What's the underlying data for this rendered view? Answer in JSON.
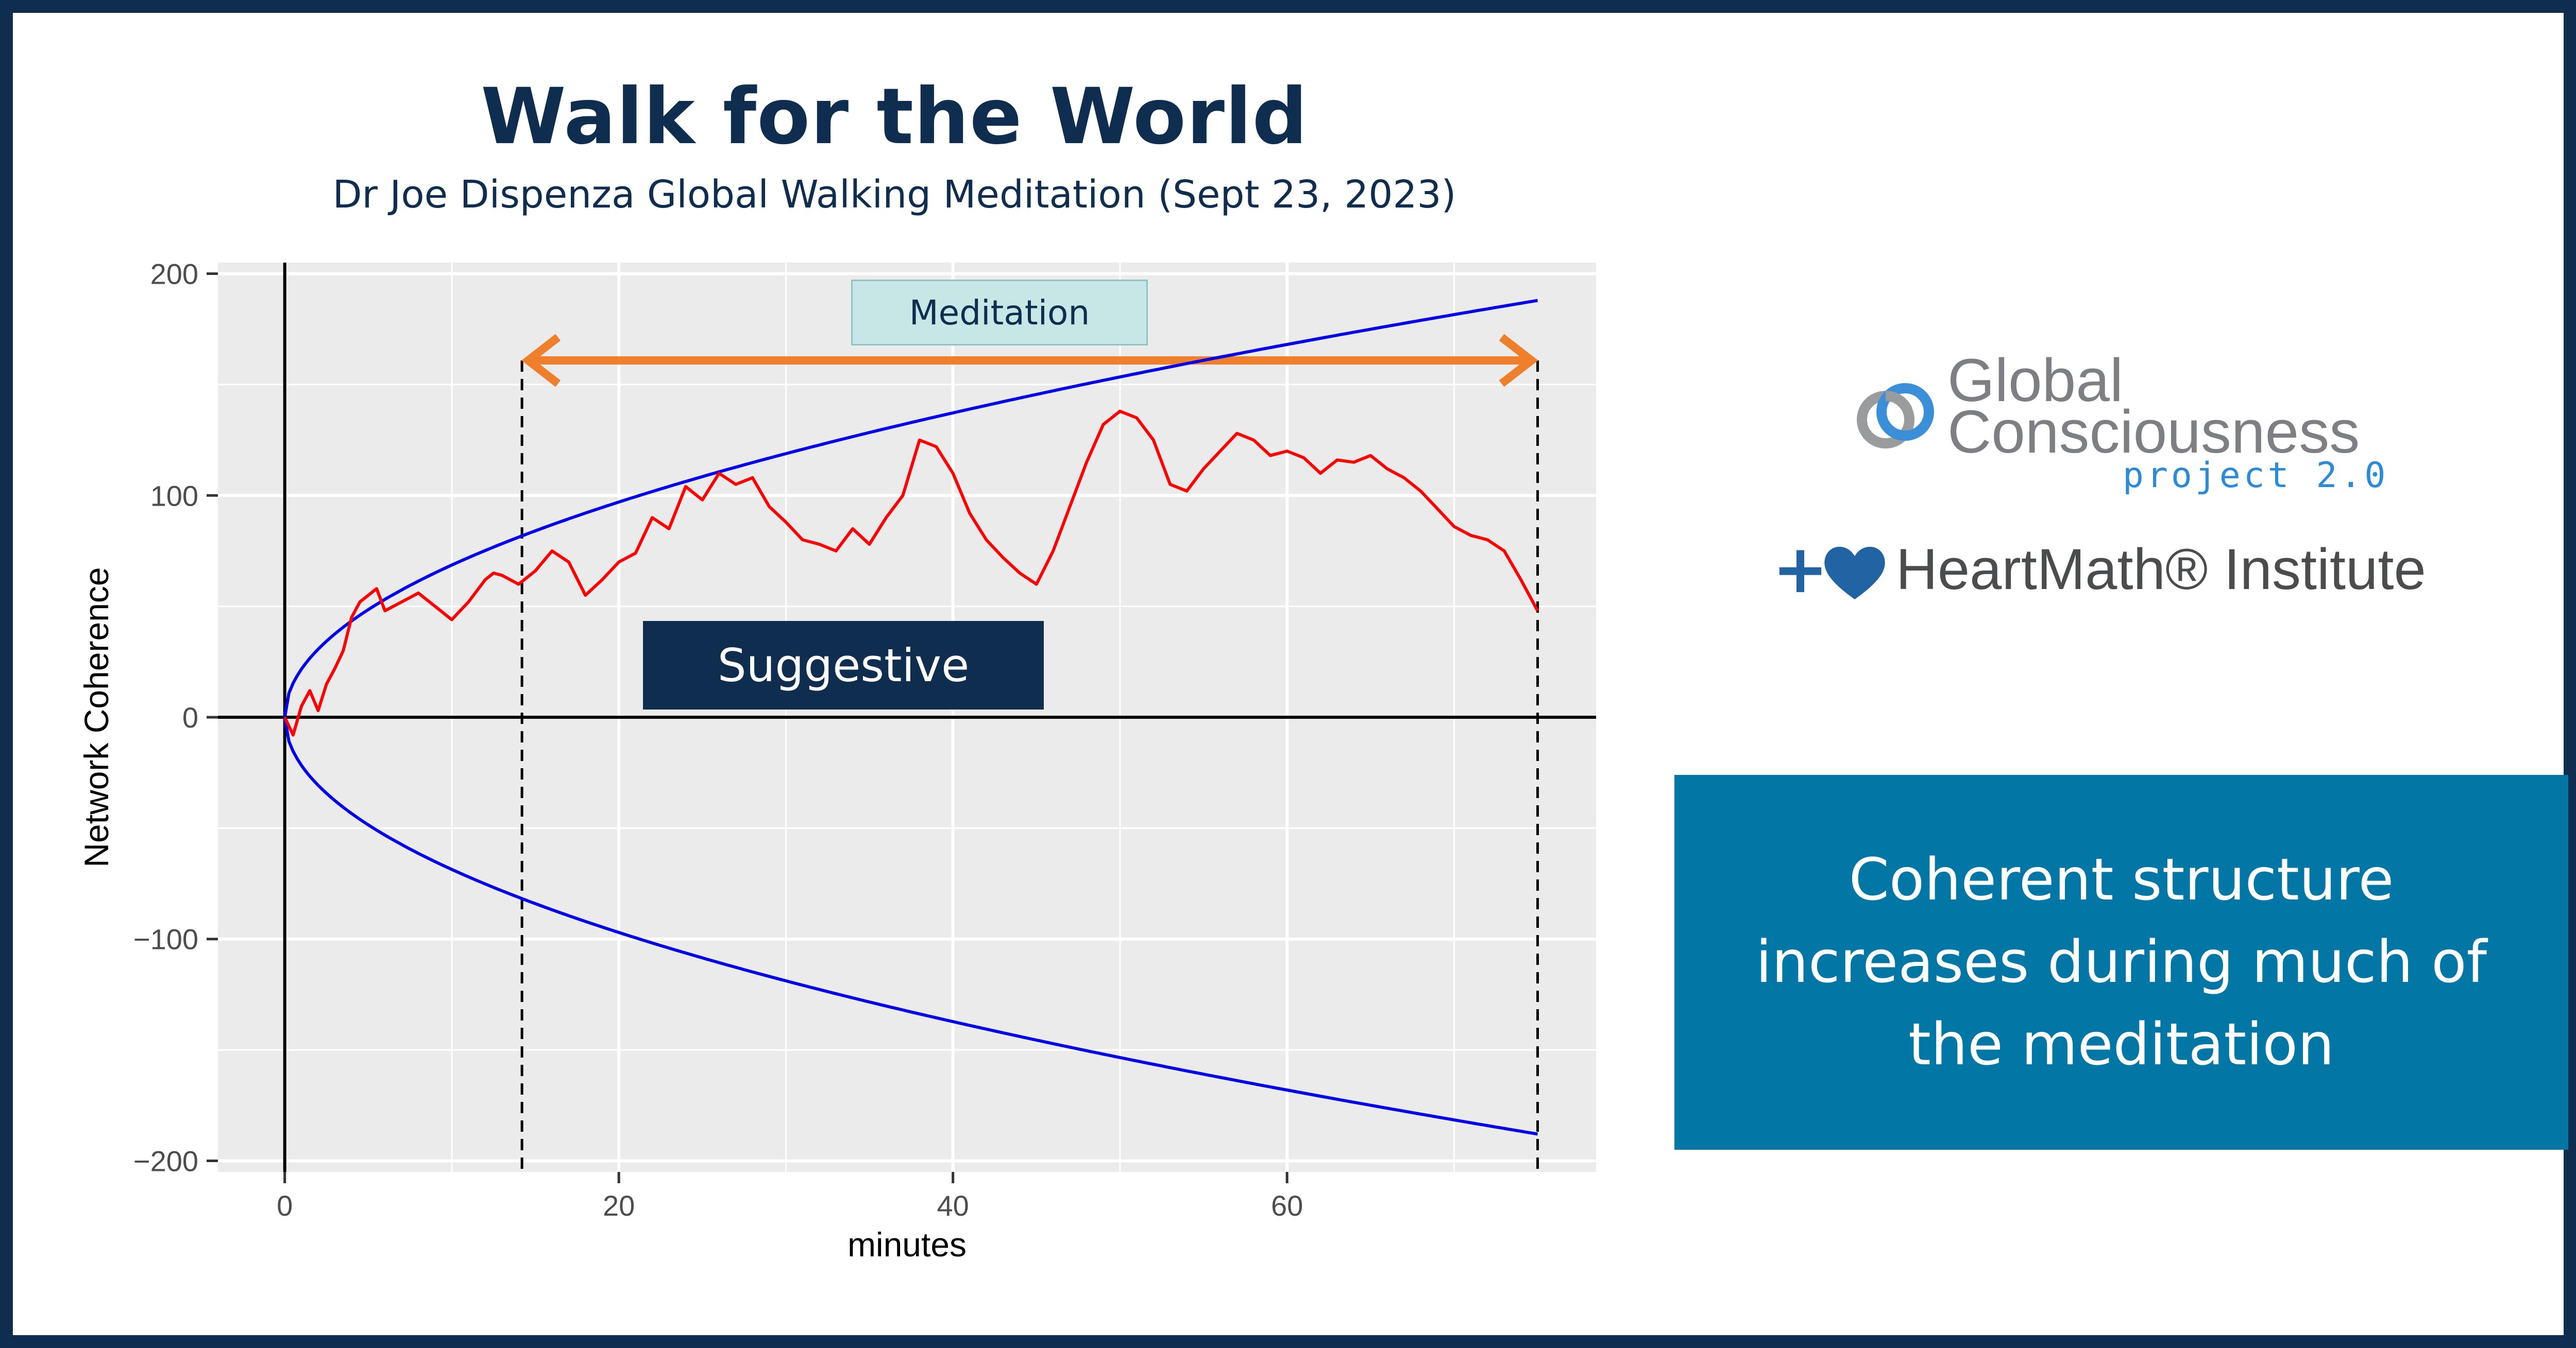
{
  "title": "Walk for the World",
  "subtitle": "Dr Joe Dispenza Global Walking Meditation (Sept 23, 2023)",
  "logos": {
    "gcp_line1": "Global",
    "gcp_line2": "Consciousness",
    "gcp_line3": "project 2.0",
    "gcp_icon": "gcp-knot-icon",
    "heartmath_plus": "+",
    "heartmath_icon": "heart-icon",
    "heartmath_text": "HeartMath® Institute"
  },
  "callout": {
    "text": "Coherent structure increases during much of the meditation",
    "background": "#0277a6"
  },
  "labels": {
    "meditation": "Meditation",
    "suggestive": "Suggestive"
  },
  "colors": {
    "brand_navy": "#0f2d4e",
    "series_red": "#ff0000",
    "envelope_blue": "#0000ee",
    "arrow_orange": "#f07f2c",
    "panel_grey": "#ebebeb"
  },
  "chart_data": {
    "type": "line",
    "xlabel": "minutes",
    "ylabel": "Network Coherence",
    "xlim": [
      -4,
      78.5
    ],
    "ylim": [
      -205,
      205
    ],
    "xticks": [
      0,
      20,
      40,
      60
    ],
    "yticks": [
      200,
      100,
      0,
      -100,
      -200
    ],
    "ytick_labels": [
      "200",
      "100",
      "0",
      "−100",
      "−200"
    ],
    "grid": true,
    "meditation_interval": [
      14.2,
      75
    ],
    "envelope": {
      "scale": 21.7,
      "form": "+/- scale * sqrt(minutes)",
      "x_end": 75
    },
    "series": [
      {
        "x": [
          0,
          0.5,
          1,
          1.5,
          2,
          2.5,
          3,
          3.5,
          4,
          4.5,
          5,
          5.5,
          6,
          7,
          8,
          9,
          10,
          11,
          12,
          12.5,
          13,
          14,
          15,
          16,
          17,
          18,
          19,
          20,
          21,
          22,
          23,
          24,
          25,
          26,
          27,
          28,
          29,
          30,
          31,
          32,
          33,
          34,
          35,
          36,
          37,
          38,
          39,
          40,
          41,
          42,
          43,
          44,
          45,
          46,
          47,
          48,
          49,
          50,
          51,
          52,
          53,
          54,
          55,
          56,
          57,
          58,
          59,
          60,
          61,
          62,
          63,
          64,
          65,
          66,
          67,
          68,
          69,
          70,
          71,
          72,
          73,
          74,
          75
        ],
        "y": [
          0,
          -8,
          5,
          12,
          3,
          15,
          22,
          30,
          45,
          52,
          55,
          58,
          48,
          52,
          56,
          50,
          44,
          52,
          62,
          65,
          64,
          60,
          66,
          75,
          70,
          55,
          62,
          70,
          74,
          90,
          85,
          104,
          98,
          110,
          105,
          108,
          95,
          88,
          80,
          78,
          75,
          85,
          78,
          90,
          100,
          125,
          122,
          110,
          92,
          80,
          72,
          65,
          60,
          75,
          95,
          115,
          132,
          138,
          135,
          125,
          105,
          102,
          112,
          120,
          128,
          125,
          118,
          120,
          117,
          110,
          116,
          115,
          118,
          112,
          108,
          102,
          94,
          86,
          82,
          80,
          75,
          62,
          48
        ]
      }
    ]
  }
}
